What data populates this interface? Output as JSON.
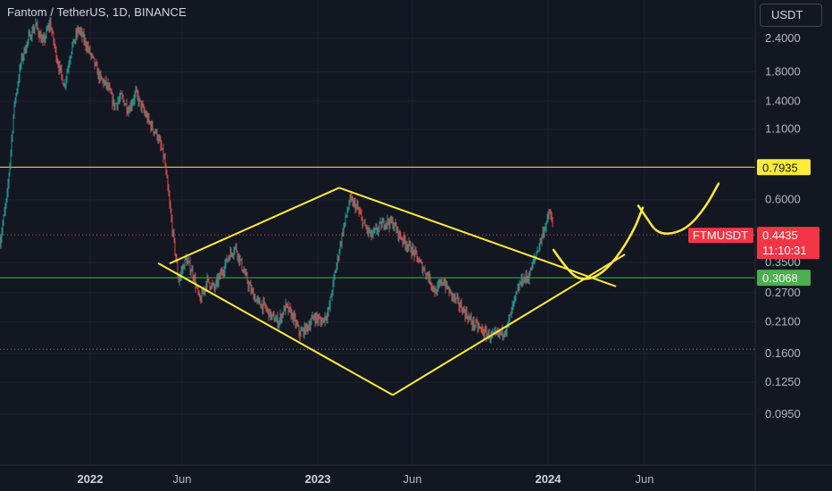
{
  "header": {
    "title": "Fantom / TetherUS, 1D, BINANCE",
    "currency": "USDT"
  },
  "colors": {
    "background": "#131722",
    "up": "#26a69a",
    "down": "#ef5350",
    "drawing": "#ffeb3b",
    "support": "#4caf50",
    "price_tag": "#f23645"
  },
  "chart_data": {
    "type": "candlestick",
    "symbol": "FTMUSDT",
    "y_scale": "log",
    "ylim": [
      0.074,
      3.1
    ],
    "y_ticks": [
      "2.4000",
      "1.8000",
      "1.4000",
      "1.1000",
      "0.6000",
      "0.3500",
      "0.2700",
      "0.2100",
      "0.1600",
      "0.1250",
      "0.0950"
    ],
    "x_ticks": [
      {
        "label": "2022",
        "bold": true
      },
      {
        "label": "Jun",
        "bold": false
      },
      {
        "label": "2023",
        "bold": true
      },
      {
        "label": "Jun",
        "bold": false
      },
      {
        "label": "2024",
        "bold": true
      },
      {
        "label": "Jun",
        "bold": false
      }
    ],
    "last_price": "0.4435",
    "countdown": "11:10:31",
    "horizontal_levels": [
      {
        "price": "0.7935",
        "style": "resistance"
      },
      {
        "price": "0.3068",
        "style": "support"
      }
    ],
    "price_path": [
      [
        0.0,
        0.42
      ],
      [
        0.8,
        0.62
      ],
      [
        1.6,
        1.35
      ],
      [
        2.4,
        2.0
      ],
      [
        3.2,
        2.4
      ],
      [
        4.0,
        2.7
      ],
      [
        4.8,
        2.3
      ],
      [
        5.6,
        2.75
      ],
      [
        6.4,
        2.0
      ],
      [
        7.2,
        1.6
      ],
      [
        8.0,
        2.2
      ],
      [
        8.8,
        2.6
      ],
      [
        9.6,
        2.3
      ],
      [
        10.4,
        2.0
      ],
      [
        11.2,
        1.7
      ],
      [
        12.0,
        1.6
      ],
      [
        12.8,
        1.35
      ],
      [
        13.6,
        1.45
      ],
      [
        14.4,
        1.3
      ],
      [
        15.2,
        1.5
      ],
      [
        16.0,
        1.3
      ],
      [
        16.8,
        1.15
      ],
      [
        17.6,
        1.05
      ],
      [
        18.4,
        0.85
      ],
      [
        19.2,
        0.5
      ],
      [
        20.0,
        0.3
      ],
      [
        20.8,
        0.36
      ],
      [
        21.6,
        0.32
      ],
      [
        22.4,
        0.25
      ],
      [
        23.2,
        0.3
      ],
      [
        24.0,
        0.28
      ],
      [
        24.8,
        0.32
      ],
      [
        25.6,
        0.37
      ],
      [
        26.4,
        0.4
      ],
      [
        27.2,
        0.33
      ],
      [
        28.0,
        0.28
      ],
      [
        28.8,
        0.25
      ],
      [
        29.6,
        0.24
      ],
      [
        30.4,
        0.22
      ],
      [
        31.2,
        0.21
      ],
      [
        32.0,
        0.24
      ],
      [
        32.8,
        0.22
      ],
      [
        33.6,
        0.19
      ],
      [
        34.4,
        0.2
      ],
      [
        35.2,
        0.22
      ],
      [
        36.0,
        0.21
      ],
      [
        36.8,
        0.23
      ],
      [
        37.6,
        0.33
      ],
      [
        38.4,
        0.46
      ],
      [
        39.2,
        0.6
      ],
      [
        40.0,
        0.56
      ],
      [
        40.8,
        0.48
      ],
      [
        41.6,
        0.44
      ],
      [
        42.4,
        0.47
      ],
      [
        43.2,
        0.5
      ],
      [
        44.0,
        0.49
      ],
      [
        44.8,
        0.44
      ],
      [
        45.6,
        0.41
      ],
      [
        46.4,
        0.38
      ],
      [
        47.2,
        0.34
      ],
      [
        48.0,
        0.31
      ],
      [
        48.8,
        0.27
      ],
      [
        49.6,
        0.3
      ],
      [
        50.4,
        0.27
      ],
      [
        51.2,
        0.25
      ],
      [
        52.0,
        0.23
      ],
      [
        52.8,
        0.21
      ],
      [
        53.6,
        0.2
      ],
      [
        54.4,
        0.19
      ],
      [
        55.2,
        0.185
      ],
      [
        56.0,
        0.19
      ],
      [
        56.8,
        0.2
      ],
      [
        57.6,
        0.25
      ],
      [
        58.4,
        0.3
      ],
      [
        59.2,
        0.31
      ],
      [
        60.0,
        0.37
      ],
      [
        60.8,
        0.45
      ],
      [
        61.6,
        0.54
      ],
      [
        62.0,
        0.45
      ]
    ],
    "drawings": [
      {
        "kind": "line",
        "points": [
          [
            19.0,
            0.347
          ],
          [
            38.0,
            0.665
          ]
        ]
      },
      {
        "kind": "line",
        "points": [
          [
            38.0,
            0.665
          ],
          [
            69.0,
            0.285
          ]
        ]
      },
      {
        "kind": "line",
        "points": [
          [
            17.7,
            0.348
          ],
          [
            44.0,
            0.112
          ]
        ]
      },
      {
        "kind": "line",
        "points": [
          [
            44.0,
            0.112
          ],
          [
            70.0,
            0.375
          ]
        ]
      },
      {
        "kind": "curve",
        "points": [
          [
            62.0,
            0.39
          ],
          [
            63.5,
            0.33
          ],
          [
            65.0,
            0.3
          ],
          [
            67.0,
            0.31
          ],
          [
            69.0,
            0.36
          ],
          [
            71.0,
            0.46
          ],
          [
            72.0,
            0.56
          ]
        ]
      },
      {
        "kind": "curve",
        "points": [
          [
            71.5,
            0.57
          ],
          [
            72.5,
            0.51
          ],
          [
            73.5,
            0.455
          ],
          [
            75.0,
            0.445
          ],
          [
            77.0,
            0.47
          ],
          [
            79.0,
            0.56
          ],
          [
            80.5,
            0.69
          ]
        ]
      }
    ]
  }
}
